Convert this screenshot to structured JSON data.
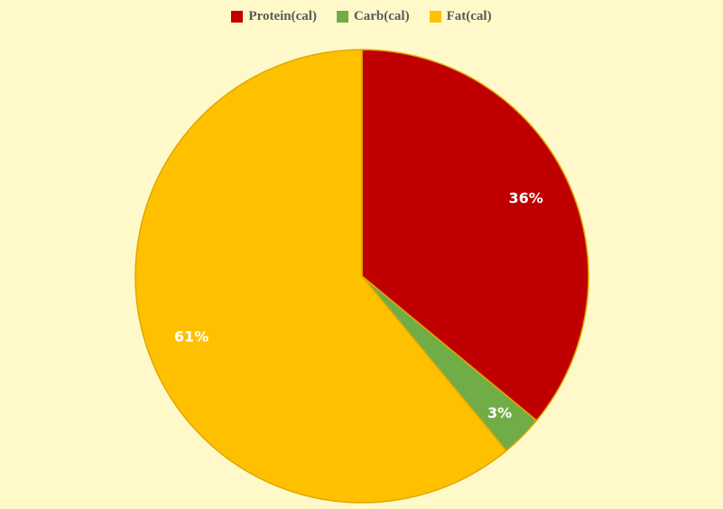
{
  "chart_data": {
    "type": "pie",
    "categories": [
      "Protein(cal)",
      "Carb(cal)",
      "Fat(cal)"
    ],
    "values": [
      36,
      3,
      61
    ],
    "data_labels": [
      "36%",
      "3%",
      "61%"
    ],
    "colors": [
      "#c00000",
      "#70ad47",
      "#ffc000"
    ],
    "legend_position": "top",
    "title": ""
  },
  "colors": {
    "background": "#fff9c9",
    "slice_border": "#e0a800"
  }
}
